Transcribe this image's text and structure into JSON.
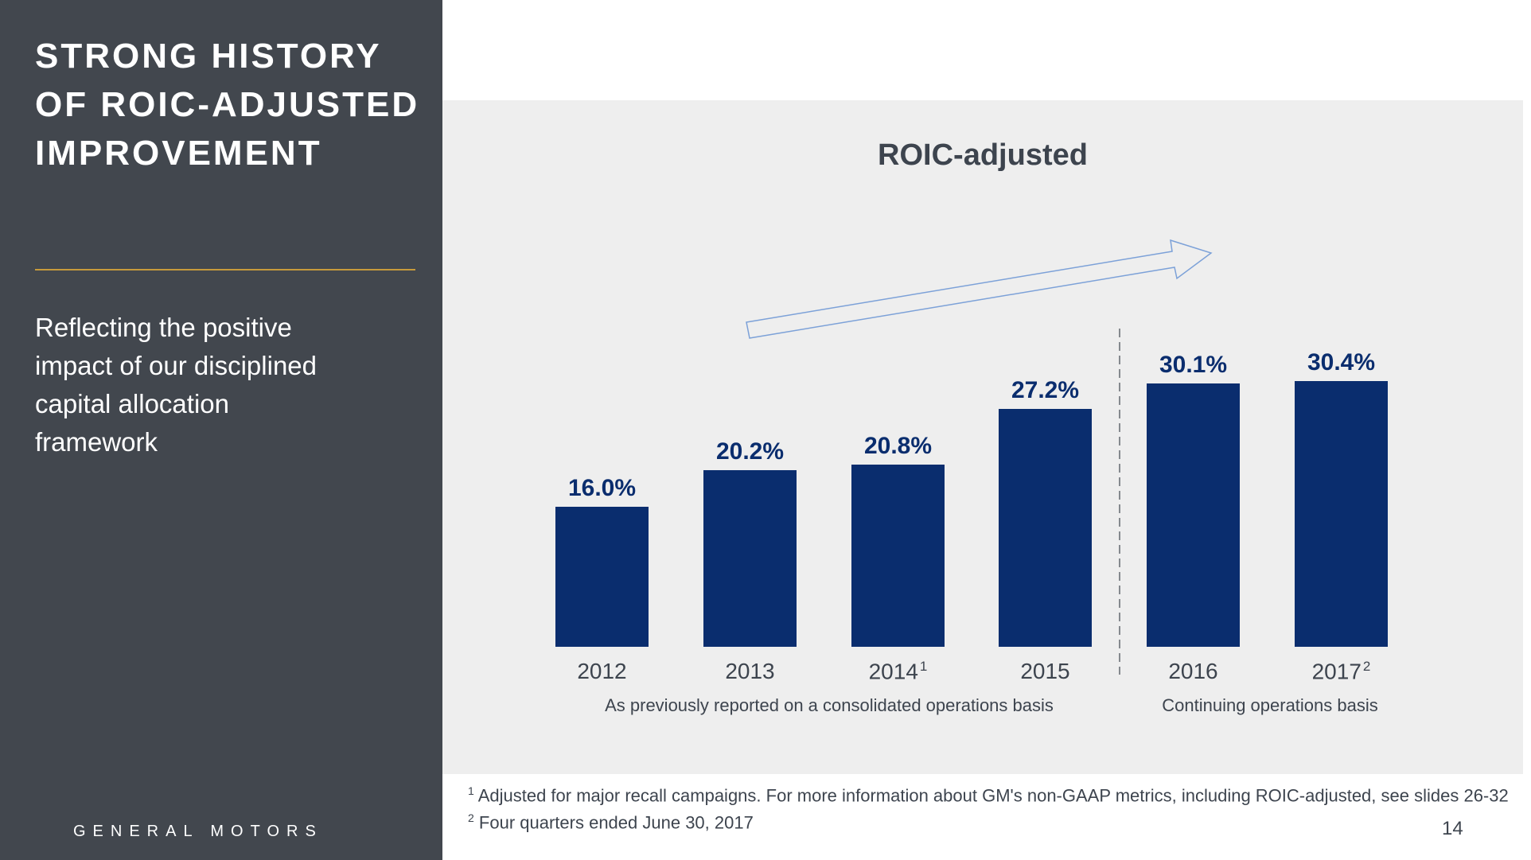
{
  "sidebar": {
    "title": "STRONG HISTORY\nOF ROIC-ADJUSTED\nIMPROVEMENT",
    "subtitle": "Reflecting the positive\nimpact of our disciplined\ncapital allocation\nframework",
    "brand": "GENERAL MOTORS",
    "background_color": "#42474E",
    "accent_line_color": "#C79A3B"
  },
  "chart_data": {
    "type": "bar",
    "title": "ROIC-adjusted",
    "categories": [
      "2012",
      "2013",
      "2014",
      "2015",
      "2016",
      "2017"
    ],
    "category_footnote_marks": [
      "",
      "",
      "1",
      "",
      "",
      "2"
    ],
    "values": [
      16.0,
      20.2,
      20.8,
      27.2,
      30.1,
      30.4
    ],
    "value_labels": [
      "16.0%",
      "20.2%",
      "20.8%",
      "27.2%",
      "30.1%",
      "30.4%"
    ],
    "groups": [
      {
        "label": "As previously reported on a consolidated operations basis",
        "categories": [
          "2012",
          "2013",
          "2014",
          "2015"
        ]
      },
      {
        "label": "Continuing operations basis",
        "categories": [
          "2016",
          "2017"
        ]
      }
    ],
    "bar_color": "#0A2D6E",
    "value_label_color": "#0A2D6E",
    "axis_label_color": "#3D444E",
    "trend_arrow": "up-right",
    "trend_arrow_color": "#7CA1D8",
    "divider_between": [
      "2015",
      "2016"
    ],
    "ylim": [
      0,
      34
    ],
    "grid": false,
    "legend": false,
    "background_color": "#EEEEEE"
  },
  "footnotes": [
    {
      "mark": "1",
      "text": "Adjusted for major recall campaigns. For more information about GM's non-GAAP metrics, including ROIC-adjusted, see slides 26-32"
    },
    {
      "mark": "2",
      "text": "Four quarters ended June 30, 2017"
    }
  ],
  "page_number": "14"
}
